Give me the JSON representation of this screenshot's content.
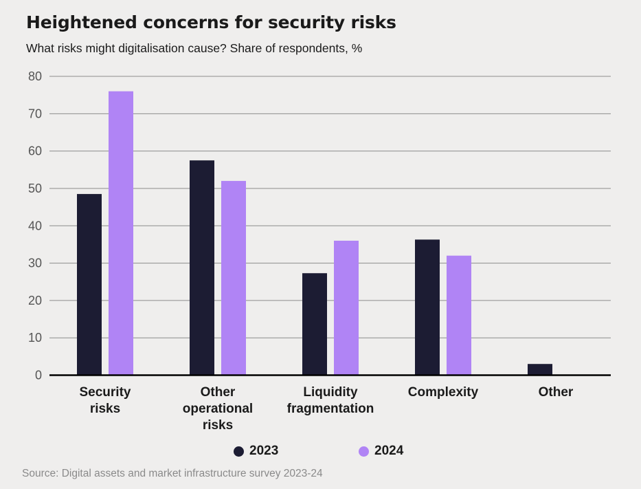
{
  "title": "Heightened concerns for security risks",
  "subtitle": "What risks might digitalisation cause? Share of respondents, %",
  "source": "Source: Digital assets and market infrastructure survey 2023-24",
  "colors": {
    "s2023": "#1c1c33",
    "s2024": "#b084f5",
    "grid": "#8c8c8c",
    "axis": "#000000",
    "tick": "#555555"
  },
  "chart_data": {
    "type": "bar",
    "title": "Heightened concerns for security risks",
    "subtitle": "What risks might digitalisation cause? Share of respondents, %",
    "categories": [
      [
        "Security",
        "risks"
      ],
      [
        "Other",
        "operational",
        "risks"
      ],
      [
        "Liquidity",
        "fragmentation"
      ],
      [
        "Complexity"
      ],
      [
        "Other"
      ]
    ],
    "series": [
      {
        "name": "2023",
        "values": [
          48.5,
          57.5,
          27.3,
          36.3,
          3
        ]
      },
      {
        "name": "2024",
        "values": [
          76,
          52,
          36,
          32,
          null
        ]
      }
    ],
    "ylim": [
      0,
      80
    ],
    "yticks": [
      0,
      10,
      20,
      30,
      40,
      50,
      60,
      70,
      80
    ],
    "grid": true,
    "legend": "bottom-center"
  }
}
